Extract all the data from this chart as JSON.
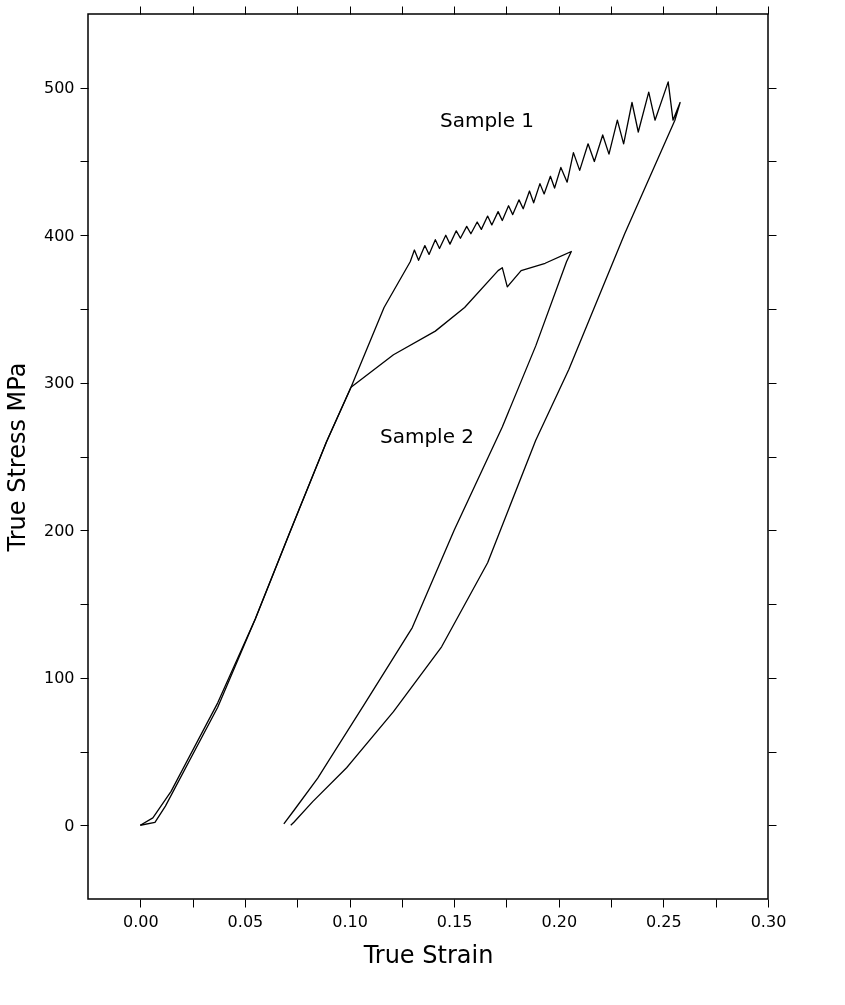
{
  "chart_data": {
    "type": "line",
    "xlabel": "True Strain",
    "ylabel": "True Stress MPa",
    "xlim": [
      -0.025,
      0.3
    ],
    "ylim": [
      -50,
      550
    ],
    "xticks": [
      {
        "value": 0,
        "label": "0.00"
      },
      {
        "value": 0.025,
        "label": null
      },
      0.05,
      {
        "value": 0.075,
        "label": null
      },
      {
        "value": 0.1,
        "label": "0.10"
      },
      {
        "value": 0.125,
        "label": null
      },
      0.15,
      {
        "value": 0.175,
        "label": null
      },
      {
        "value": 0.2,
        "label": "0.20"
      },
      {
        "value": 0.225,
        "label": null
      },
      0.25,
      {
        "value": 0.275,
        "label": null
      },
      {
        "value": 0.3,
        "label": "0.30"
      }
    ],
    "yticks": [
      0,
      {
        "value": 50,
        "label": null
      },
      100,
      {
        "value": 150,
        "label": null
      },
      200,
      {
        "value": 250,
        "label": null
      },
      300,
      {
        "value": 350,
        "label": null
      },
      400,
      {
        "value": 450,
        "label": null
      },
      500
    ],
    "grid": false,
    "legend": false,
    "marker": "none",
    "line_style": "solid",
    "series": [
      {
        "name": "Sample 1",
        "color": "#000000",
        "x": [
          0.0,
          0.006,
          0.0147,
          0.037,
          0.055,
          0.071,
          0.089,
          0.1007,
          0.1165,
          0.129,
          0.131,
          0.133,
          0.136,
          0.138,
          0.141,
          0.143,
          0.146,
          0.148,
          0.151,
          0.153,
          0.156,
          0.158,
          0.161,
          0.163,
          0.166,
          0.168,
          0.171,
          0.173,
          0.176,
          0.178,
          0.181,
          0.183,
          0.186,
          0.188,
          0.191,
          0.193,
          0.196,
          0.198,
          0.201,
          0.204,
          0.207,
          0.21,
          0.214,
          0.217,
          0.221,
          0.224,
          0.228,
          0.231,
          0.235,
          0.238,
          0.243,
          0.246,
          0.2523,
          0.2546,
          0.258,
          0.2555,
          0.2315,
          0.2048,
          0.189,
          0.166,
          0.144,
          0.121,
          0.0986,
          0.0824,
          0.0734,
          0.0719
        ],
        "values": [
          0,
          5,
          23,
          83,
          140,
          197,
          260,
          297,
          351,
          382,
          390,
          383,
          393,
          387,
          397,
          391,
          400,
          394,
          403,
          398,
          406,
          401,
          409,
          404,
          413,
          407,
          416,
          410,
          420,
          414,
          424,
          418,
          430,
          422,
          435,
          428,
          440,
          432,
          446,
          436,
          456,
          444,
          462,
          450,
          468,
          455,
          478,
          462,
          490,
          470,
          497,
          478,
          504,
          478,
          490,
          478,
          401,
          309,
          261,
          178,
          121,
          77,
          39,
          16,
          2,
          0
        ]
      },
      {
        "name": "Sample 2",
        "color": "#000000",
        "x": [
          0.0,
          0.007,
          0.012,
          0.037,
          0.055,
          0.071,
          0.089,
          0.1007,
          0.121,
          0.141,
          0.155,
          0.171,
          0.173,
          0.1754,
          0.182,
          0.1935,
          0.206,
          0.2037,
          0.189,
          0.173,
          0.15,
          0.13,
          0.1075,
          0.0848,
          0.0734,
          0.0686
        ],
        "values": [
          0,
          2,
          13,
          80,
          140,
          197,
          260,
          297,
          319,
          335,
          351,
          376,
          378,
          365,
          376,
          381,
          389,
          382,
          325,
          270,
          200,
          134,
          83,
          32,
          10,
          1
        ]
      }
    ]
  }
}
